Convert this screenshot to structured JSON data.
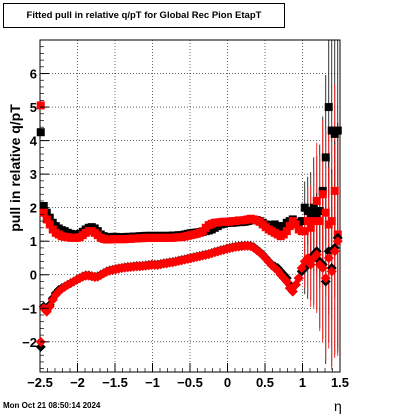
{
  "title": "Fitted pull in relative q/pT for Global Rec Pion EtapT",
  "footer": "Mon Oct 21 08:50:14 2024",
  "chart_data": {
    "type": "scatter",
    "xlabel": "η",
    "ylabel": "pull in relative q/pT",
    "xlim": [
      -2.5,
      1.5
    ],
    "ylim": [
      -2.9,
      7.0
    ],
    "xticks": [
      -2.5,
      -2,
      -1.5,
      -1,
      -0.5,
      0,
      0.5,
      1,
      1.5
    ],
    "xtick_labels": [
      "−2.5",
      "−2",
      "−1.5",
      "−1",
      "−0.5",
      "0",
      "0.5",
      "1",
      "1.5"
    ],
    "yticks": [
      -2,
      -1,
      0,
      1,
      2,
      3,
      4,
      5,
      6
    ],
    "ytick_labels": [
      "−2",
      "−1",
      "0",
      "1",
      "2",
      "3",
      "4",
      "5",
      "6"
    ],
    "grid": true,
    "series": [
      {
        "marker": "square",
        "color": "#000000",
        "x": [
          -2.49,
          -2.45,
          -2.41,
          -2.37,
          -2.33,
          -2.29,
          -2.25,
          -2.21,
          -2.17,
          -2.13,
          -2.09,
          -2.05,
          -2.01,
          -1.97,
          -1.93,
          -1.89,
          -1.85,
          -1.81,
          -1.77,
          -1.73,
          -1.69,
          -1.65,
          -1.61,
          -1.57,
          -1.53,
          -1.49,
          -1.45,
          -1.41,
          -1.37,
          -1.33,
          -1.29,
          -1.25,
          -1.21,
          -1.17,
          -1.13,
          -1.09,
          -1.05,
          -1.01,
          -0.97,
          -0.93,
          -0.89,
          -0.85,
          -0.81,
          -0.77,
          -0.73,
          -0.69,
          -0.65,
          -0.61,
          -0.57,
          -0.53,
          -0.49,
          -0.45,
          -0.41,
          -0.37,
          -0.33,
          -0.29,
          -0.25,
          -0.21,
          -0.17,
          -0.13,
          -0.09,
          -0.05,
          -0.01,
          0.03,
          0.07,
          0.11,
          0.15,
          0.19,
          0.23,
          0.27,
          0.31,
          0.35,
          0.39,
          0.43,
          0.47,
          0.51,
          0.55,
          0.59,
          0.63,
          0.67,
          0.71,
          0.75,
          0.79,
          0.83,
          0.87,
          0.91,
          0.95,
          0.99,
          1.03,
          1.07,
          1.11,
          1.15,
          1.19,
          1.23,
          1.27,
          1.31,
          1.35,
          1.39,
          1.43,
          1.47
        ],
        "y": [
          4.25,
          2.05,
          1.85,
          1.7,
          1.55,
          1.45,
          1.38,
          1.33,
          1.3,
          1.25,
          1.22,
          1.2,
          1.2,
          1.22,
          1.28,
          1.35,
          1.4,
          1.42,
          1.38,
          1.3,
          1.2,
          1.15,
          1.12,
          1.12,
          1.13,
          1.13,
          1.12,
          1.12,
          1.12,
          1.13,
          1.13,
          1.14,
          1.14,
          1.15,
          1.15,
          1.16,
          1.16,
          1.16,
          1.16,
          1.16,
          1.16,
          1.16,
          1.16,
          1.16,
          1.17,
          1.17,
          1.18,
          1.18,
          1.2,
          1.22,
          1.24,
          1.25,
          1.26,
          1.27,
          1.28,
          1.3,
          1.32,
          1.35,
          1.4,
          1.45,
          1.5,
          1.52,
          1.55,
          1.55,
          1.55,
          1.56,
          1.57,
          1.57,
          1.58,
          1.6,
          1.62,
          1.63,
          1.63,
          1.6,
          1.55,
          1.5,
          1.48,
          1.48,
          1.5,
          1.45,
          1.4,
          1.45,
          1.55,
          1.6,
          1.65,
          1.55,
          1.5,
          1.6,
          2.0,
          1.9,
          1.8,
          2.0,
          1.8,
          1.9,
          2.5,
          3.5,
          5.0,
          4.3,
          4.2,
          4.3
        ]
      },
      {
        "marker": "square",
        "color": "#ff0000",
        "x": [
          -2.49,
          -2.45,
          -2.41,
          -2.37,
          -2.33,
          -2.29,
          -2.25,
          -2.21,
          -2.17,
          -2.13,
          -2.09,
          -2.05,
          -2.01,
          -1.97,
          -1.93,
          -1.89,
          -1.85,
          -1.81,
          -1.77,
          -1.73,
          -1.69,
          -1.65,
          -1.61,
          -1.57,
          -1.53,
          -1.49,
          -1.45,
          -1.41,
          -1.37,
          -1.33,
          -1.29,
          -1.25,
          -1.21,
          -1.17,
          -1.13,
          -1.09,
          -1.05,
          -1.01,
          -0.97,
          -0.93,
          -0.89,
          -0.85,
          -0.81,
          -0.77,
          -0.73,
          -0.69,
          -0.65,
          -0.61,
          -0.57,
          -0.53,
          -0.49,
          -0.45,
          -0.41,
          -0.37,
          -0.33,
          -0.29,
          -0.25,
          -0.21,
          -0.17,
          -0.13,
          -0.09,
          -0.05,
          -0.01,
          0.03,
          0.07,
          0.11,
          0.15,
          0.19,
          0.23,
          0.27,
          0.31,
          0.35,
          0.39,
          0.43,
          0.47,
          0.51,
          0.55,
          0.59,
          0.63,
          0.67,
          0.71,
          0.75,
          0.79,
          0.83,
          0.87,
          0.91,
          0.95,
          0.99,
          1.03,
          1.07,
          1.11,
          1.15,
          1.19,
          1.23,
          1.27,
          1.31,
          1.35,
          1.39,
          1.43,
          1.47
        ],
        "y": [
          5.05,
          1.85,
          1.65,
          1.5,
          1.35,
          1.25,
          1.2,
          1.15,
          1.13,
          1.12,
          1.1,
          1.1,
          1.1,
          1.12,
          1.18,
          1.25,
          1.3,
          1.3,
          1.25,
          1.18,
          1.1,
          1.07,
          1.05,
          1.05,
          1.06,
          1.06,
          1.06,
          1.06,
          1.06,
          1.07,
          1.07,
          1.08,
          1.08,
          1.09,
          1.09,
          1.1,
          1.1,
          1.1,
          1.1,
          1.1,
          1.1,
          1.1,
          1.1,
          1.1,
          1.1,
          1.11,
          1.12,
          1.12,
          1.14,
          1.16,
          1.18,
          1.2,
          1.22,
          1.25,
          1.3,
          1.4,
          1.48,
          1.52,
          1.55,
          1.56,
          1.57,
          1.58,
          1.58,
          1.58,
          1.6,
          1.6,
          1.62,
          1.62,
          1.63,
          1.65,
          1.67,
          1.65,
          1.62,
          1.58,
          1.5,
          1.42,
          1.35,
          1.3,
          1.25,
          1.2,
          1.15,
          1.2,
          1.3,
          1.45,
          1.6,
          1.5,
          1.35,
          1.3,
          1.3,
          1.6,
          1.4,
          1.6,
          2.2,
          1.6,
          2.4,
          1.85,
          1.5,
          1.6,
          2.5,
          1.2
        ]
      },
      {
        "marker": "diamond",
        "color": "#000000",
        "x": [
          -2.49,
          -2.45,
          -2.41,
          -2.37,
          -2.33,
          -2.29,
          -2.25,
          -2.21,
          -2.17,
          -2.13,
          -2.09,
          -2.05,
          -2.01,
          -1.97,
          -1.93,
          -1.89,
          -1.85,
          -1.81,
          -1.77,
          -1.73,
          -1.69,
          -1.65,
          -1.61,
          -1.57,
          -1.53,
          -1.49,
          -1.45,
          -1.41,
          -1.37,
          -1.33,
          -1.29,
          -1.25,
          -1.21,
          -1.17,
          -1.13,
          -1.09,
          -1.05,
          -1.01,
          -0.97,
          -0.93,
          -0.89,
          -0.85,
          -0.81,
          -0.77,
          -0.73,
          -0.69,
          -0.65,
          -0.61,
          -0.57,
          -0.53,
          -0.49,
          -0.45,
          -0.41,
          -0.37,
          -0.33,
          -0.29,
          -0.25,
          -0.21,
          -0.17,
          -0.13,
          -0.09,
          -0.05,
          -0.01,
          0.03,
          0.07,
          0.11,
          0.15,
          0.19,
          0.23,
          0.27,
          0.31,
          0.35,
          0.39,
          0.43,
          0.47,
          0.51,
          0.55,
          0.59,
          0.63,
          0.67,
          0.71,
          0.75,
          0.79,
          0.83,
          0.87,
          0.91,
          0.95,
          0.99,
          1.03,
          1.07,
          1.11,
          1.15,
          1.19,
          1.23,
          1.27,
          1.31,
          1.35,
          1.39,
          1.43,
          1.47
        ],
        "y": [
          -2.15,
          -0.95,
          -1.05,
          -0.9,
          -0.7,
          -0.55,
          -0.45,
          -0.4,
          -0.35,
          -0.3,
          -0.25,
          -0.2,
          -0.15,
          -0.1,
          -0.05,
          -0.02,
          -0.02,
          -0.04,
          -0.06,
          -0.05,
          0.0,
          0.05,
          0.1,
          0.13,
          0.15,
          0.17,
          0.19,
          0.2,
          0.22,
          0.23,
          0.24,
          0.25,
          0.26,
          0.26,
          0.27,
          0.28,
          0.29,
          0.3,
          0.3,
          0.3,
          0.32,
          0.34,
          0.35,
          0.37,
          0.38,
          0.4,
          0.42,
          0.44,
          0.46,
          0.48,
          0.5,
          0.52,
          0.54,
          0.56,
          0.58,
          0.6,
          0.62,
          0.65,
          0.68,
          0.7,
          0.73,
          0.75,
          0.78,
          0.8,
          0.82,
          0.84,
          0.85,
          0.86,
          0.87,
          0.87,
          0.86,
          0.82,
          0.75,
          0.68,
          0.6,
          0.5,
          0.4,
          0.3,
          0.25,
          0.2,
          0.1,
          0.0,
          -0.1,
          -0.3,
          -0.5,
          -0.3,
          -0.1,
          0.1,
          0.2,
          0.3,
          0.5,
          0.6,
          0.7,
          0.4,
          0.3,
          -0.2,
          0.7,
          0.2,
          0.8,
          1.1
        ]
      },
      {
        "marker": "diamond",
        "color": "#ff0000",
        "x": [
          -2.49,
          -2.45,
          -2.41,
          -2.37,
          -2.33,
          -2.29,
          -2.25,
          -2.21,
          -2.17,
          -2.13,
          -2.09,
          -2.05,
          -2.01,
          -1.97,
          -1.93,
          -1.89,
          -1.85,
          -1.81,
          -1.77,
          -1.73,
          -1.69,
          -1.65,
          -1.61,
          -1.57,
          -1.53,
          -1.49,
          -1.45,
          -1.41,
          -1.37,
          -1.33,
          -1.29,
          -1.25,
          -1.21,
          -1.17,
          -1.13,
          -1.09,
          -1.05,
          -1.01,
          -0.97,
          -0.93,
          -0.89,
          -0.85,
          -0.81,
          -0.77,
          -0.73,
          -0.69,
          -0.65,
          -0.61,
          -0.57,
          -0.53,
          -0.49,
          -0.45,
          -0.41,
          -0.37,
          -0.33,
          -0.29,
          -0.25,
          -0.21,
          -0.17,
          -0.13,
          -0.09,
          -0.05,
          -0.01,
          0.03,
          0.07,
          0.11,
          0.15,
          0.19,
          0.23,
          0.27,
          0.31,
          0.35,
          0.39,
          0.43,
          0.47,
          0.51,
          0.55,
          0.59,
          0.63,
          0.67,
          0.71,
          0.75,
          0.79,
          0.83,
          0.87,
          0.91,
          0.95,
          0.99,
          1.03,
          1.07,
          1.11,
          1.15,
          1.19,
          1.23,
          1.27,
          1.31,
          1.35,
          1.39,
          1.43,
          1.47
        ],
        "y": [
          -2.0,
          -1.0,
          -1.1,
          -0.95,
          -0.75,
          -0.6,
          -0.5,
          -0.42,
          -0.36,
          -0.3,
          -0.25,
          -0.2,
          -0.15,
          -0.1,
          -0.06,
          -0.03,
          -0.03,
          -0.05,
          -0.07,
          -0.06,
          -0.01,
          0.04,
          0.09,
          0.12,
          0.14,
          0.16,
          0.18,
          0.2,
          0.21,
          0.22,
          0.23,
          0.24,
          0.25,
          0.25,
          0.26,
          0.27,
          0.28,
          0.29,
          0.29,
          0.29,
          0.31,
          0.33,
          0.34,
          0.36,
          0.37,
          0.39,
          0.41,
          0.43,
          0.45,
          0.47,
          0.49,
          0.51,
          0.53,
          0.55,
          0.57,
          0.59,
          0.61,
          0.64,
          0.67,
          0.69,
          0.72,
          0.74,
          0.77,
          0.79,
          0.81,
          0.83,
          0.84,
          0.85,
          0.86,
          0.86,
          0.85,
          0.8,
          0.73,
          0.66,
          0.58,
          0.48,
          0.38,
          0.28,
          0.2,
          0.12,
          0.0,
          -0.1,
          -0.2,
          -0.4,
          -0.5,
          -0.3,
          -0.1,
          0.2,
          0.4,
          0.5,
          0.3,
          0.5,
          0.6,
          0.3,
          0.2,
          -0.1,
          0.5,
          0.1,
          0.7,
          1.0
        ]
      }
    ]
  }
}
